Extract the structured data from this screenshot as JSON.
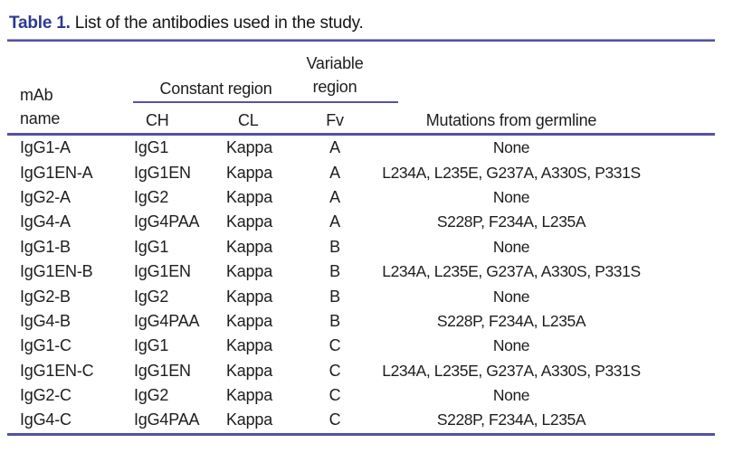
{
  "caption": {
    "label": "Table 1.",
    "text": "List of the antibodies used in the study."
  },
  "header": {
    "mab_line1": "mAb",
    "mab_line2": "name",
    "constant_region": "Constant region",
    "variable_line1": "Variable",
    "variable_line2": "region",
    "ch": "CH",
    "cl": "CL",
    "fv": "Fv",
    "mutations": "Mutations from germline"
  },
  "rows": [
    {
      "name": "IgG1-A",
      "ch": "IgG1",
      "cl": "Kappa",
      "fv": "A",
      "mutations": "None"
    },
    {
      "name": "IgG1EN-A",
      "ch": "IgG1EN",
      "cl": "Kappa",
      "fv": "A",
      "mutations": "L234A, L235E, G237A, A330S, P331S"
    },
    {
      "name": "IgG2-A",
      "ch": "IgG2",
      "cl": "Kappa",
      "fv": "A",
      "mutations": "None"
    },
    {
      "name": "IgG4-A",
      "ch": "IgG4PAA",
      "cl": "Kappa",
      "fv": "A",
      "mutations": "S228P, F234A, L235A"
    },
    {
      "name": "IgG1-B",
      "ch": "IgG1",
      "cl": "Kappa",
      "fv": "B",
      "mutations": "None"
    },
    {
      "name": "IgG1EN-B",
      "ch": "IgG1EN",
      "cl": "Kappa",
      "fv": "B",
      "mutations": "L234A, L235E, G237A, A330S, P331S"
    },
    {
      "name": "IgG2-B",
      "ch": "IgG2",
      "cl": "Kappa",
      "fv": "B",
      "mutations": "None"
    },
    {
      "name": "IgG4-B",
      "ch": "IgG4PAA",
      "cl": "Kappa",
      "fv": "B",
      "mutations": "S228P, F234A, L235A"
    },
    {
      "name": "IgG1-C",
      "ch": "IgG1",
      "cl": "Kappa",
      "fv": "C",
      "mutations": "None"
    },
    {
      "name": "IgG1EN-C",
      "ch": "IgG1EN",
      "cl": "Kappa",
      "fv": "C",
      "mutations": "L234A, L235E, G237A, A330S, P331S"
    },
    {
      "name": "IgG2-C",
      "ch": "IgG2",
      "cl": "Kappa",
      "fv": "C",
      "mutations": "None"
    },
    {
      "name": "IgG4-C",
      "ch": "IgG4PAA",
      "cl": "Kappa",
      "fv": "C",
      "mutations": "S228P, F234A, L235A"
    }
  ],
  "colors": {
    "caption_blue": "#2b3a94",
    "rule": "#5551a5",
    "text": "#1d1d1f"
  }
}
